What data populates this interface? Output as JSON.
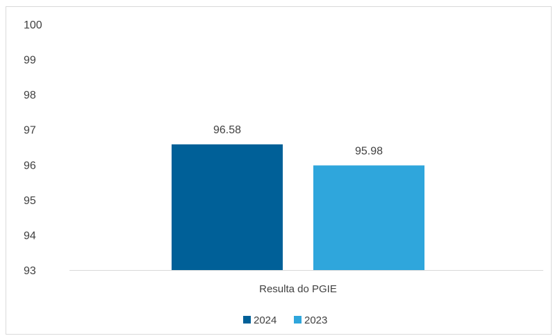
{
  "chart_data": {
    "type": "bar",
    "categories": [
      "Resulta do PGIE"
    ],
    "series": [
      {
        "name": "2024",
        "values": [
          96.58
        ],
        "color": "#006098"
      },
      {
        "name": "2023",
        "values": [
          95.98
        ],
        "color": "#2fa6dc"
      }
    ],
    "data_labels": [
      "96.58",
      "95.98"
    ],
    "ylim": [
      93,
      100
    ],
    "yticks": [
      93,
      94,
      95,
      96,
      97,
      98,
      99,
      100
    ],
    "grid": false,
    "legend_position": "bottom",
    "title": "",
    "xlabel": "",
    "ylabel": ""
  }
}
